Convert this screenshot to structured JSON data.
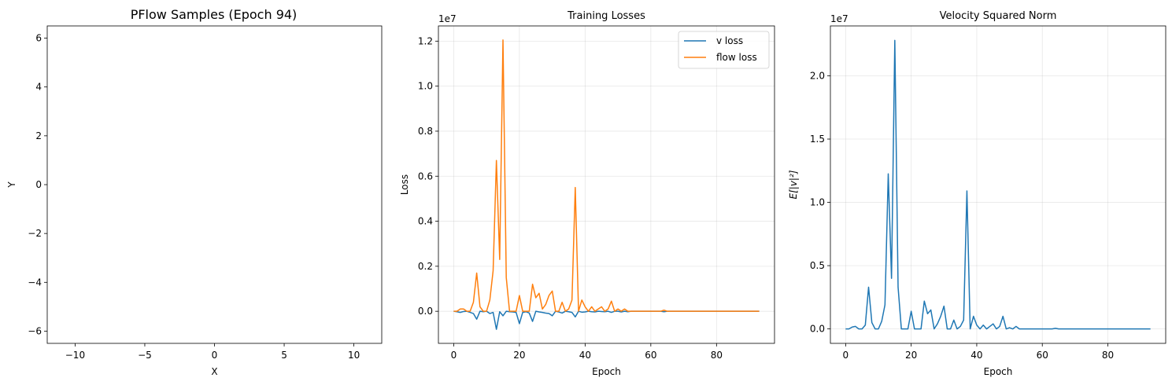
{
  "chart_data": [
    {
      "type": "scatter",
      "title": "PFlow Samples (Epoch 94)",
      "xlabel": "X",
      "ylabel": "Y",
      "xlim": [
        -12,
        12
      ],
      "ylim": [
        -6.5,
        6.5
      ],
      "xticks": [
        -10,
        -5,
        0,
        5,
        10
      ],
      "xtick_labels": [
        "−10",
        "−5",
        "0",
        "5",
        "10"
      ],
      "yticks": [
        -6,
        -4,
        -2,
        0,
        2,
        4,
        6
      ],
      "ytick_labels": [
        "−6",
        "−4",
        "−2",
        "0",
        "2",
        "4",
        "6"
      ],
      "grid": false,
      "points": []
    },
    {
      "type": "line",
      "title": "Training Losses",
      "xlabel": "Epoch",
      "ylabel": "Loss",
      "offset_label": "1e7",
      "xlim": [
        -4.65,
        97.65
      ],
      "ylim": [
        -0.1425,
        1.2675
      ],
      "xticks": [
        0,
        20,
        40,
        60,
        80
      ],
      "xtick_labels": [
        "0",
        "20",
        "40",
        "60",
        "80"
      ],
      "yticks": [
        0.0,
        0.2,
        0.4,
        0.6,
        0.8,
        1.0,
        1.2
      ],
      "ytick_labels": [
        "0.0",
        "0.2",
        "0.4",
        "0.6",
        "0.8",
        "1.0",
        "1.2"
      ],
      "grid": true,
      "legend_position": "top-right",
      "series": [
        {
          "name": "v loss",
          "color": "#1f77b4",
          "x": [
            0,
            1,
            2,
            3,
            4,
            5,
            6,
            7,
            8,
            9,
            10,
            11,
            12,
            13,
            14,
            15,
            16,
            17,
            18,
            19,
            20,
            21,
            22,
            23,
            24,
            25,
            26,
            27,
            28,
            29,
            30,
            31,
            32,
            33,
            34,
            35,
            36,
            37,
            38,
            39,
            40,
            41,
            42,
            43,
            44,
            45,
            46,
            47,
            48,
            49,
            50,
            51,
            52,
            53,
            54,
            55,
            56,
            57,
            58,
            59,
            60,
            61,
            62,
            63,
            64,
            65,
            66,
            67,
            68,
            69,
            70,
            71,
            72,
            73,
            74,
            75,
            76,
            77,
            78,
            79,
            80,
            81,
            82,
            83,
            84,
            85,
            86,
            87,
            88,
            89,
            90,
            91,
            92,
            93
          ],
          "y": [
            0,
            -0.002,
            -0.005,
            -0.001,
            0,
            -0.005,
            -0.01,
            -0.035,
            0,
            -0.002,
            0,
            -0.01,
            -0.005,
            -0.08,
            -0.002,
            -0.02,
            0,
            -0.002,
            -0.003,
            -0.005,
            -0.055,
            -0.005,
            -0.002,
            -0.008,
            -0.045,
            0,
            -0.003,
            -0.005,
            -0.008,
            -0.01,
            -0.02,
            0,
            -0.003,
            -0.008,
            0,
            -0.002,
            -0.005,
            -0.025,
            0,
            -0.004,
            -0.003,
            0,
            -0.002,
            -0.003,
            0,
            -0.001,
            -0.002,
            0,
            -0.005,
            0,
            0,
            -0.003,
            0,
            -0.002,
            0,
            0,
            0,
            0,
            0,
            0,
            0,
            0,
            0,
            0,
            -0.002,
            0,
            0,
            0,
            0,
            0,
            0,
            0,
            0,
            0,
            0,
            0,
            0,
            0,
            0,
            0,
            0,
            0,
            0,
            0,
            0,
            0,
            0,
            0,
            0,
            0,
            0,
            0,
            0,
            0
          ]
        },
        {
          "name": "flow loss",
          "color": "#ff7f0e",
          "x": [
            0,
            1,
            2,
            3,
            4,
            5,
            6,
            7,
            8,
            9,
            10,
            11,
            12,
            13,
            14,
            15,
            16,
            17,
            18,
            19,
            20,
            21,
            22,
            23,
            24,
            25,
            26,
            27,
            28,
            29,
            30,
            31,
            32,
            33,
            34,
            35,
            36,
            37,
            38,
            39,
            40,
            41,
            42,
            43,
            44,
            45,
            46,
            47,
            48,
            49,
            50,
            51,
            52,
            53,
            54,
            55,
            56,
            57,
            58,
            59,
            60,
            61,
            62,
            63,
            64,
            65,
            66,
            67,
            68,
            69,
            70,
            71,
            72,
            73,
            74,
            75,
            76,
            77,
            78,
            79,
            80,
            81,
            82,
            83,
            84,
            85,
            86,
            87,
            88,
            89,
            90,
            91,
            92,
            93
          ],
          "y": [
            0,
            0,
            0.01,
            0.01,
            0,
            0,
            0.04,
            0.17,
            0.02,
            0,
            0,
            0.05,
            0.18,
            0.67,
            0.23,
            1.205,
            0.15,
            0,
            0,
            0,
            0.07,
            0,
            0,
            0,
            0.12,
            0.06,
            0.08,
            0.01,
            0.03,
            0.07,
            0.09,
            0,
            0,
            0.04,
            0,
            0.01,
            0.05,
            0.55,
            0,
            0.05,
            0.02,
            0,
            0.02,
            0,
            0.01,
            0.02,
            0,
            0.01,
            0.045,
            0,
            0.01,
            0,
            0.01,
            0,
            0,
            0,
            0,
            0,
            0,
            0,
            0,
            0,
            0,
            0,
            0.005,
            0,
            0,
            0,
            0,
            0,
            0,
            0,
            0,
            0,
            0,
            0,
            0,
            0,
            0,
            0,
            0,
            0,
            0,
            0,
            0,
            0,
            0,
            0,
            0,
            0,
            0,
            0,
            0,
            0
          ]
        }
      ]
    },
    {
      "type": "line",
      "title": "Velocity Squared Norm",
      "xlabel": "Epoch",
      "ylabel": "E[|v|²]",
      "offset_label": "1e7",
      "xlim": [
        -4.65,
        97.65
      ],
      "ylim": [
        -0.114,
        2.394
      ],
      "xticks": [
        0,
        20,
        40,
        60,
        80
      ],
      "xtick_labels": [
        "0",
        "20",
        "40",
        "60",
        "80"
      ],
      "yticks": [
        0.0,
        0.5,
        1.0,
        1.5,
        2.0
      ],
      "ytick_labels": [
        "0.0",
        "0.5",
        "1.0",
        "1.5",
        "2.0"
      ],
      "grid": true,
      "series": [
        {
          "color": "#1f77b4",
          "x": [
            0,
            1,
            2,
            3,
            4,
            5,
            6,
            7,
            8,
            9,
            10,
            11,
            12,
            13,
            14,
            15,
            16,
            17,
            18,
            19,
            20,
            21,
            22,
            23,
            24,
            25,
            26,
            27,
            28,
            29,
            30,
            31,
            32,
            33,
            34,
            35,
            36,
            37,
            38,
            39,
            40,
            41,
            42,
            43,
            44,
            45,
            46,
            47,
            48,
            49,
            50,
            51,
            52,
            53,
            54,
            55,
            56,
            57,
            58,
            59,
            60,
            61,
            62,
            63,
            64,
            65,
            66,
            67,
            68,
            69,
            70,
            71,
            72,
            73,
            74,
            75,
            76,
            77,
            78,
            79,
            80,
            81,
            82,
            83,
            84,
            85,
            86,
            87,
            88,
            89,
            90,
            91,
            92,
            93
          ],
          "y": [
            0,
            0,
            0.015,
            0.02,
            0,
            0,
            0.03,
            0.33,
            0.05,
            0,
            0,
            0.06,
            0.19,
            1.225,
            0.4,
            2.28,
            0.33,
            0,
            0,
            0,
            0.14,
            0,
            0,
            0,
            0.22,
            0.12,
            0.15,
            0,
            0.04,
            0.1,
            0.18,
            0,
            0,
            0.07,
            0,
            0.02,
            0.07,
            1.09,
            0,
            0.1,
            0.03,
            0,
            0.03,
            0,
            0.02,
            0.04,
            0,
            0.02,
            0.1,
            0,
            0.01,
            0,
            0.02,
            0,
            0,
            0,
            0,
            0,
            0,
            0,
            0,
            0,
            0,
            0,
            0.005,
            0,
            0,
            0,
            0,
            0,
            0,
            0,
            0,
            0,
            0,
            0,
            0,
            0,
            0,
            0,
            0,
            0,
            0,
            0,
            0,
            0,
            0,
            0,
            0,
            0,
            0,
            0,
            0,
            0
          ]
        }
      ]
    }
  ]
}
